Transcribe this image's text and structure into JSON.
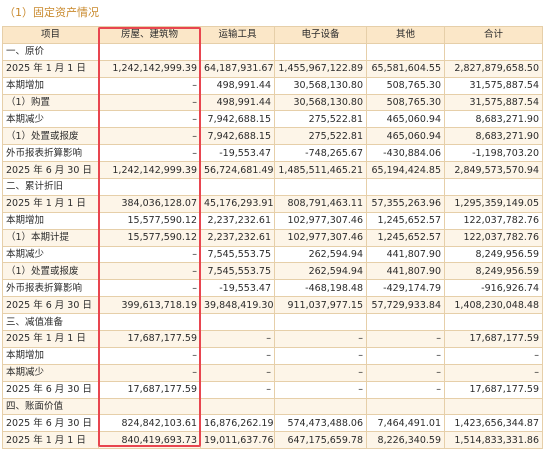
{
  "caption": "（1）固定资产情况",
  "headers": [
    "项目",
    "房屋、建筑物",
    "运输工具",
    "电子设备",
    "其他",
    "合计"
  ],
  "rows": [
    {
      "type": "section",
      "label": "一、原价",
      "values": [
        "",
        "",
        "",
        "",
        ""
      ]
    },
    {
      "type": "item",
      "label": "2025 年 1 月 1 日",
      "values": [
        "1,242,142,999.39",
        "64,187,931.67",
        "1,455,967,122.89",
        "65,581,604.55",
        "2,827,879,658.50"
      ]
    },
    {
      "type": "item",
      "label": "本期增加",
      "values": [
        "–",
        "498,991.44",
        "30,568,130.80",
        "508,765.30",
        "31,575,887.54"
      ]
    },
    {
      "type": "item",
      "label": "（1）购置",
      "values": [
        "–",
        "498,991.44",
        "30,568,130.80",
        "508,765.30",
        "31,575,887.54"
      ]
    },
    {
      "type": "item",
      "label": "本期减少",
      "values": [
        "–",
        "7,942,688.15",
        "275,522.81",
        "465,060.94",
        "8,683,271.90"
      ]
    },
    {
      "type": "item",
      "label": "（1）处置或报废",
      "values": [
        "–",
        "7,942,688.15",
        "275,522.81",
        "465,060.94",
        "8,683,271.90"
      ]
    },
    {
      "type": "item",
      "label": "外币报表折算影响",
      "values": [
        "–",
        "-19,553.47",
        "-748,265.67",
        "-430,884.06",
        "-1,198,703.20"
      ]
    },
    {
      "type": "item",
      "label": "2025 年 6 月 30 日",
      "values": [
        "1,242,142,999.39",
        "56,724,681.49",
        "1,485,511,465.21",
        "65,194,424.85",
        "2,849,573,570.94"
      ]
    },
    {
      "type": "section",
      "label": "二、累计折旧",
      "values": [
        "",
        "",
        "",
        "",
        ""
      ]
    },
    {
      "type": "item",
      "label": "2025 年 1 月 1 日",
      "values": [
        "384,036,128.07",
        "45,176,293.91",
        "808,791,463.11",
        "57,355,263.96",
        "1,295,359,149.05"
      ]
    },
    {
      "type": "item",
      "label": "本期增加",
      "values": [
        "15,577,590.12",
        "2,237,232.61",
        "102,977,307.46",
        "1,245,652.57",
        "122,037,782.76"
      ]
    },
    {
      "type": "item",
      "label": "（1）本期计提",
      "values": [
        "15,577,590.12",
        "2,237,232.61",
        "102,977,307.46",
        "1,245,652.57",
        "122,037,782.76"
      ]
    },
    {
      "type": "item",
      "label": "本期减少",
      "values": [
        "–",
        "7,545,553.75",
        "262,594.94",
        "441,807.90",
        "8,249,956.59"
      ]
    },
    {
      "type": "item",
      "label": "（1）处置或报废",
      "values": [
        "–",
        "7,545,553.75",
        "262,594.94",
        "441,807.90",
        "8,249,956.59"
      ]
    },
    {
      "type": "item",
      "label": "外币报表折算影响",
      "values": [
        "–",
        "-19,553.47",
        "-468,198.48",
        "-429,174.79",
        "-916,926.74"
      ]
    },
    {
      "type": "item",
      "label": "2025 年 6 月 30 日",
      "values": [
        "399,613,718.19",
        "39,848,419.30",
        "911,037,977.15",
        "57,729,933.84",
        "1,408,230,048.48"
      ]
    },
    {
      "type": "section",
      "label": "三、减值准备",
      "values": [
        "",
        "",
        "",
        "",
        ""
      ]
    },
    {
      "type": "item",
      "label": "2025 年 1 月 1 日",
      "values": [
        "17,687,177.59",
        "–",
        "–",
        "–",
        "17,687,177.59"
      ]
    },
    {
      "type": "item",
      "label": "本期增加",
      "values": [
        "–",
        "–",
        "–",
        "–",
        "–"
      ]
    },
    {
      "type": "item",
      "label": "本期减少",
      "values": [
        "–",
        "–",
        "–",
        "–",
        "–"
      ]
    },
    {
      "type": "item",
      "label": "2025 年 6 月 30 日",
      "values": [
        "17,687,177.59",
        "–",
        "–",
        "–",
        "17,687,177.59"
      ]
    },
    {
      "type": "section",
      "label": "四、账面价值",
      "values": [
        "",
        "",
        "",
        "",
        ""
      ]
    },
    {
      "type": "item",
      "label": "2025 年 6 月 30 日",
      "values": [
        "824,842,103.61",
        "16,876,262.19",
        "574,473,488.06",
        "7,464,491.01",
        "1,423,656,344.87"
      ]
    },
    {
      "type": "item",
      "label": "2025 年 1 月 1 日",
      "values": [
        "840,419,693.73",
        "19,011,637.76",
        "647,175,659.78",
        "8,226,340.59",
        "1,514,833,331.86"
      ]
    }
  ],
  "colors": {
    "caption": "#c98a2e",
    "header_bg": "#fbe7c8",
    "border": "#e6cfa9",
    "highlight": "#e8454f"
  }
}
